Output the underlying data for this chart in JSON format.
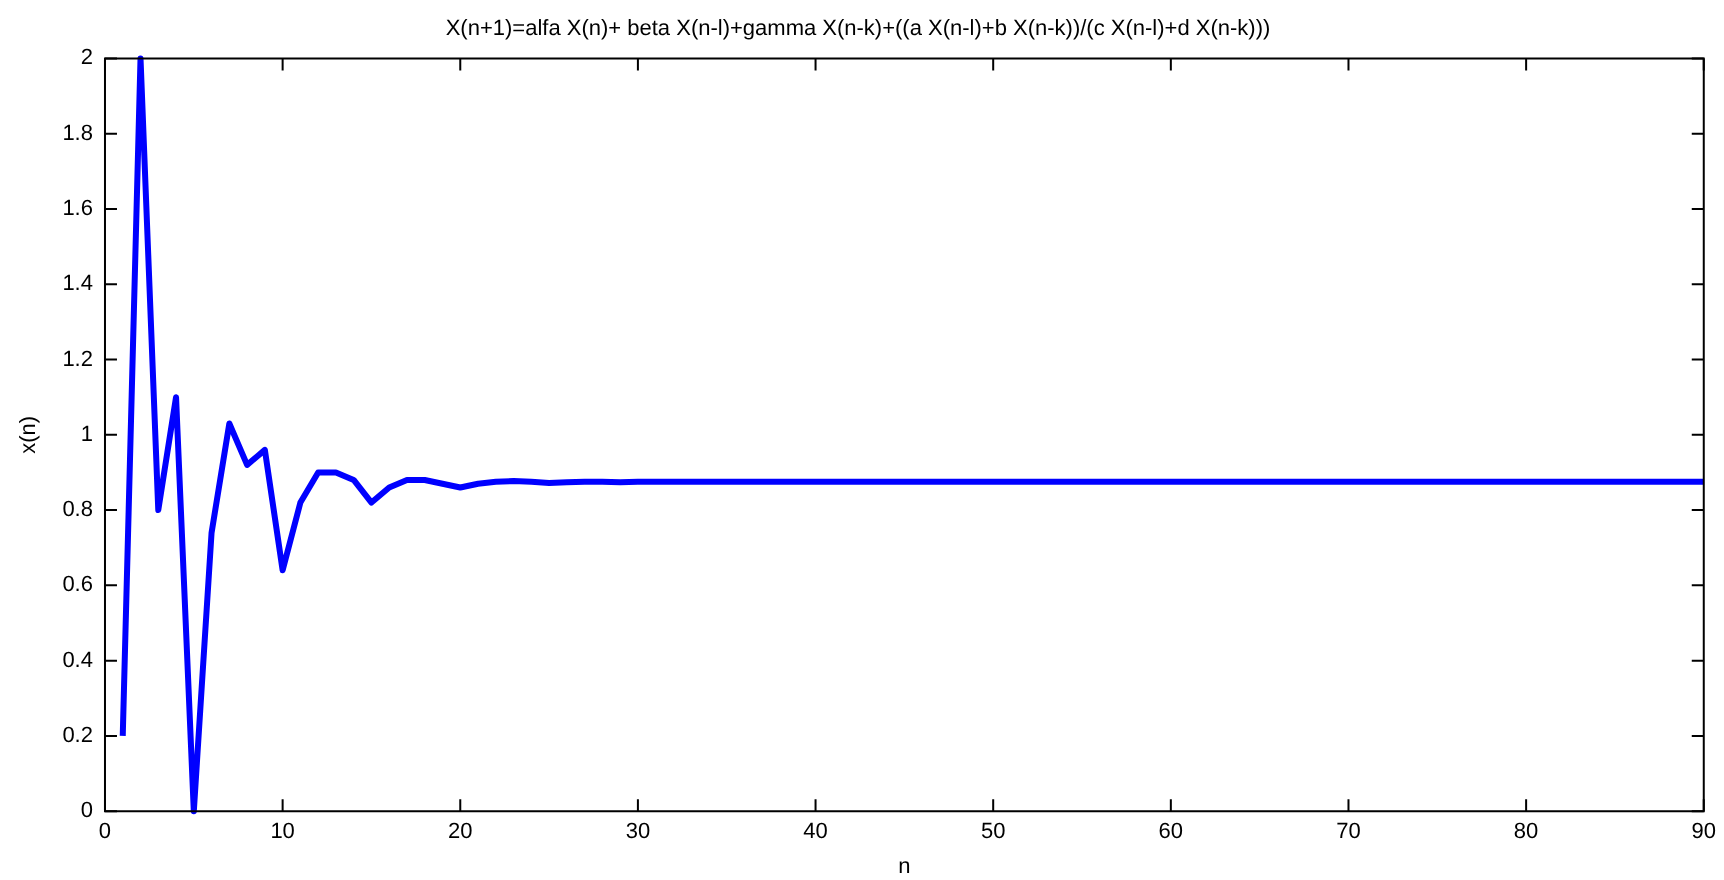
{
  "chart_data": {
    "type": "line",
    "title": "X(n+1)=alfa X(n)+ beta X(n-l)+gamma X(n-k)+((a X(n-l)+b X(n-k))/(c X(n-l)+d X(n-k)))",
    "xlabel": "n",
    "ylabel": "x(n)",
    "series": [
      {
        "color": "#0000ff",
        "x": [
          1,
          2,
          3,
          4,
          5,
          6,
          7,
          8,
          9,
          10,
          11,
          12,
          13,
          14,
          15,
          16,
          17,
          18,
          19,
          20,
          21,
          22,
          23,
          24,
          25,
          26,
          27,
          28,
          29,
          30,
          40,
          50,
          60,
          70,
          80,
          90
        ],
        "values": [
          0.2,
          2.0,
          0.8,
          1.1,
          0.0,
          0.74,
          1.03,
          0.92,
          0.96,
          0.64,
          0.82,
          0.9,
          0.9,
          0.88,
          0.82,
          0.86,
          0.88,
          0.88,
          0.87,
          0.86,
          0.87,
          0.875,
          0.877,
          0.875,
          0.872,
          0.874,
          0.875,
          0.875,
          0.874,
          0.875,
          0.875,
          0.875,
          0.875,
          0.875,
          0.875,
          0.875
        ]
      }
    ],
    "xlim": [
      0,
      90
    ],
    "xticks": [
      0,
      10,
      20,
      30,
      40,
      50,
      60,
      70,
      80,
      90
    ],
    "ylim": [
      0,
      2
    ],
    "yticks": [
      0,
      0.2,
      0.4,
      0.6,
      0.8,
      1,
      1.2,
      1.4,
      1.6,
      1.8,
      2
    ],
    "grid": false,
    "legend": false,
    "marker": "none",
    "line_style": "solid"
  }
}
